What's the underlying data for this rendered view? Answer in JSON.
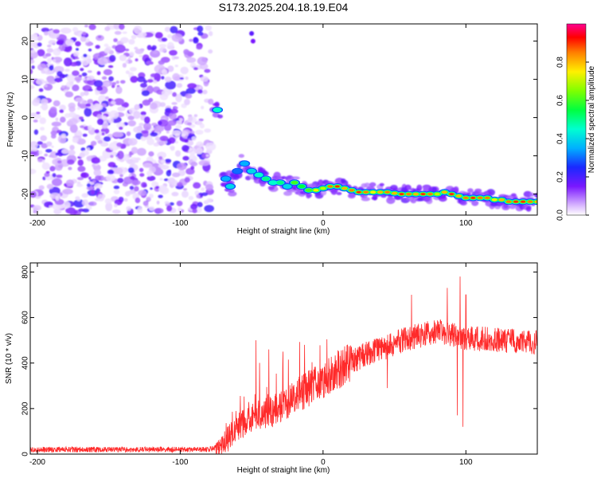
{
  "title": "S173.2025.204.18.19.E04",
  "chart_data": [
    {
      "type": "heatmap",
      "xlabel": "Height of straight line (km)",
      "ylabel": "Frequency (Hz)",
      "xlim": [
        -205,
        150
      ],
      "ylim": [
        -25.5,
        24.5
      ],
      "xticks": [
        -200,
        -100,
        0,
        100
      ],
      "yticks": [
        -20,
        -10,
        0,
        10,
        20
      ],
      "colorbar": {
        "label": "Normalized spectral amplitude",
        "range": [
          0,
          1
        ],
        "ticks": [
          0.0,
          0.2,
          0.4,
          0.6,
          0.8
        ]
      },
      "noise_region": {
        "x": [
          -205,
          -78
        ],
        "y": [
          -25,
          24
        ]
      },
      "track": [
        {
          "x": -74,
          "y": 2,
          "a": 0.45
        },
        {
          "x": -68,
          "y": -16,
          "a": 0.35
        },
        {
          "x": -65,
          "y": -18,
          "a": 0.4
        },
        {
          "x": -60,
          "y": -14,
          "a": 0.3
        },
        {
          "x": -55,
          "y": -12,
          "a": 0.35
        },
        {
          "x": -50,
          "y": -14,
          "a": 0.4
        },
        {
          "x": -45,
          "y": -15,
          "a": 0.45
        },
        {
          "x": -40,
          "y": -16,
          "a": 0.5
        },
        {
          "x": -35,
          "y": -17,
          "a": 0.45
        },
        {
          "x": -30,
          "y": -17,
          "a": 0.5
        },
        {
          "x": -25,
          "y": -18,
          "a": 0.4
        },
        {
          "x": -20,
          "y": -17,
          "a": 0.6
        },
        {
          "x": -15,
          "y": -18,
          "a": 0.55
        },
        {
          "x": -10,
          "y": -19,
          "a": 0.6
        },
        {
          "x": -5,
          "y": -19,
          "a": 0.75
        },
        {
          "x": 0,
          "y": -18.5,
          "a": 0.7
        },
        {
          "x": 5,
          "y": -18,
          "a": 0.85
        },
        {
          "x": 10,
          "y": -18,
          "a": 0.9
        },
        {
          "x": 15,
          "y": -18.5,
          "a": 0.8
        },
        {
          "x": 20,
          "y": -19,
          "a": 0.85
        },
        {
          "x": 25,
          "y": -19.5,
          "a": 0.9
        },
        {
          "x": 30,
          "y": -19.5,
          "a": 0.85
        },
        {
          "x": 35,
          "y": -19.5,
          "a": 0.75
        },
        {
          "x": 40,
          "y": -19.5,
          "a": 0.8
        },
        {
          "x": 45,
          "y": -19.5,
          "a": 0.85
        },
        {
          "x": 50,
          "y": -19.8,
          "a": 0.8
        },
        {
          "x": 55,
          "y": -20,
          "a": 0.9
        },
        {
          "x": 60,
          "y": -20,
          "a": 0.85
        },
        {
          "x": 65,
          "y": -20,
          "a": 0.8
        },
        {
          "x": 70,
          "y": -20,
          "a": 0.9
        },
        {
          "x": 75,
          "y": -20,
          "a": 0.85
        },
        {
          "x": 80,
          "y": -20,
          "a": 0.7
        },
        {
          "x": 85,
          "y": -19.5,
          "a": 0.8
        },
        {
          "x": 90,
          "y": -20,
          "a": 0.9
        },
        {
          "x": 95,
          "y": -20.5,
          "a": 0.8
        },
        {
          "x": 100,
          "y": -21,
          "a": 0.85
        },
        {
          "x": 105,
          "y": -21,
          "a": 0.9
        },
        {
          "x": 110,
          "y": -21,
          "a": 0.85
        },
        {
          "x": 115,
          "y": -21,
          "a": 0.85
        },
        {
          "x": 120,
          "y": -21.5,
          "a": 0.75
        },
        {
          "x": 125,
          "y": -21.5,
          "a": 0.8
        },
        {
          "x": 130,
          "y": -22,
          "a": 0.85
        },
        {
          "x": 135,
          "y": -22,
          "a": 0.9
        },
        {
          "x": 140,
          "y": -22,
          "a": 0.9
        },
        {
          "x": 145,
          "y": -22,
          "a": 0.85
        },
        {
          "x": 150,
          "y": -22,
          "a": 0.8
        }
      ],
      "extra_blobs": [
        {
          "x": -50,
          "y": 22,
          "a": 0.3
        },
        {
          "x": -49,
          "y": 20,
          "a": 0.25
        }
      ],
      "color": "#ff0000"
    },
    {
      "type": "line",
      "xlabel": "Height of straight line (km)",
      "ylabel": "SNR (10 * v/v)",
      "xlim": [
        -205,
        150
      ],
      "ylim": [
        0,
        840
      ],
      "xticks": [
        -200,
        -100,
        0,
        100
      ],
      "yticks": [
        0,
        200,
        400,
        600,
        800
      ],
      "line_color": "#ff2a2a",
      "trend": [
        {
          "x": -205,
          "y": 20
        },
        {
          "x": -80,
          "y": 20
        },
        {
          "x": -70,
          "y": 40
        },
        {
          "x": -60,
          "y": 120
        },
        {
          "x": -45,
          "y": 170
        },
        {
          "x": -30,
          "y": 200
        },
        {
          "x": -15,
          "y": 270
        },
        {
          "x": 0,
          "y": 330
        },
        {
          "x": 15,
          "y": 390
        },
        {
          "x": 30,
          "y": 440
        },
        {
          "x": 45,
          "y": 470
        },
        {
          "x": 60,
          "y": 510
        },
        {
          "x": 80,
          "y": 540
        },
        {
          "x": 100,
          "y": 510
        },
        {
          "x": 150,
          "y": 490
        }
      ],
      "spikes": [
        {
          "x": -47,
          "y": 500
        },
        {
          "x": -38,
          "y": 460
        },
        {
          "x": -28,
          "y": 450
        },
        {
          "x": -13,
          "y": 480
        },
        {
          "x": 62,
          "y": 700
        },
        {
          "x": 87,
          "y": 730
        },
        {
          "x": 96,
          "y": 780
        },
        {
          "x": 98,
          "y": 835
        },
        {
          "x": 100,
          "y": 700
        }
      ],
      "dips": [
        {
          "x": 45,
          "y": 290
        },
        {
          "x": 94,
          "y": 170
        },
        {
          "x": 98,
          "y": 120
        }
      ]
    }
  ]
}
